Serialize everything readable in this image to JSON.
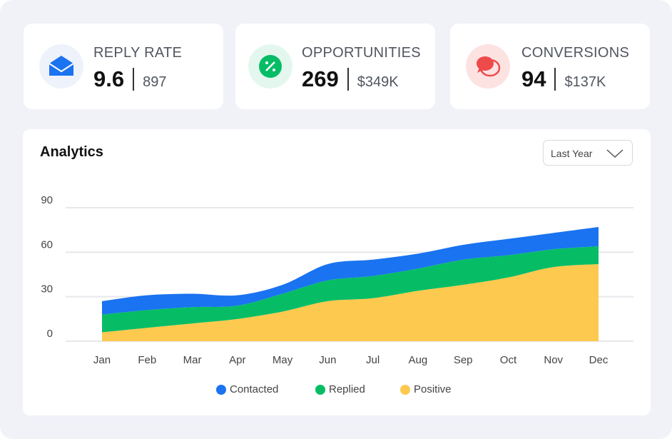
{
  "cards": [
    {
      "title": "REPLY RATE",
      "value": "9.6",
      "secondary": "897"
    },
    {
      "title": "OPPORTUNITIES",
      "value": "269",
      "secondary": "$349K"
    },
    {
      "title": "CONVERSIONS",
      "value": "94",
      "secondary": "$137K"
    }
  ],
  "dropdown": "Last Year",
  "chart_data": {
    "type": "stacked-area",
    "title": "Analytics",
    "categories": [
      "Jan",
      "Feb",
      "Mar",
      "Apr",
      "May",
      "Jun",
      "Jul",
      "Aug",
      "Sep",
      "Oct",
      "Nov",
      "Dec"
    ],
    "series": [
      {
        "name": "Positive",
        "color": "#fdc94f",
        "values": [
          6,
          9,
          12,
          15,
          20,
          27,
          29,
          34,
          38,
          43,
          50,
          52
        ]
      },
      {
        "name": "Replied",
        "color": "#06bd66",
        "values": [
          12,
          12,
          11,
          9,
          12,
          14,
          15,
          15,
          17,
          15,
          12,
          12
        ]
      },
      {
        "name": "Contacted",
        "color": "#1a73f0",
        "values": [
          9,
          10,
          9,
          7,
          6,
          11,
          11,
          10,
          10,
          11,
          11,
          13
        ]
      }
    ],
    "legend_order": [
      "Contacted",
      "Replied",
      "Positive"
    ],
    "ylim": [
      0,
      90
    ],
    "yticks": [
      0,
      30,
      60,
      90
    ],
    "grid": true
  }
}
